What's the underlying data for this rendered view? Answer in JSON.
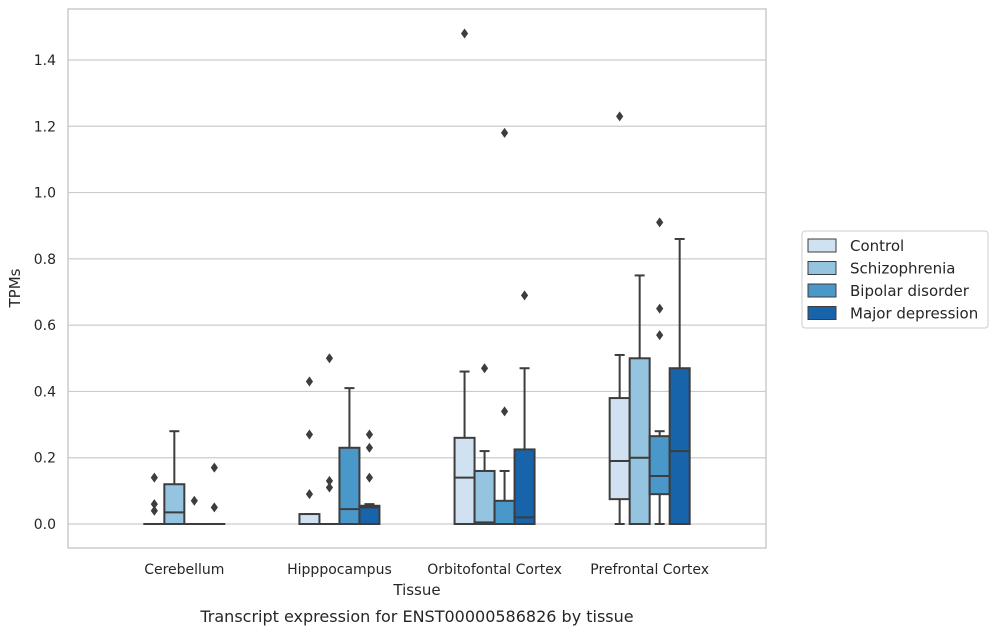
{
  "chart_data": {
    "type": "box",
    "caption": "Transcript expression for ENST00000586826 by tissue",
    "xlabel": "Tissue",
    "ylabel": "TPMs",
    "ylim": [
      -0.07,
      1.56
    ],
    "yticks": [
      0.0,
      0.2,
      0.4,
      0.6,
      0.8,
      1.0,
      1.2,
      1.4
    ],
    "ytick_labels": [
      "0.0",
      "0.2",
      "0.4",
      "0.6",
      "0.8",
      "1.0",
      "1.2",
      "1.4"
    ],
    "grid": "horizontal",
    "legend_position": "right",
    "categories": [
      "Cerebellum",
      "Hipppocampus",
      "Orbitofontal Cortex",
      "Prefrontal Cortex"
    ],
    "series": [
      {
        "name": "Control",
        "color": "#d0e1f2",
        "boxes": [
          {
            "whislo": 0,
            "q1": 0,
            "med": 0,
            "q3": 0,
            "whishi": 0,
            "fliers": [
              0.04,
              0.06,
              0.14
            ]
          },
          {
            "whislo": 0,
            "q1": 0,
            "med": 0,
            "q3": 0.03,
            "whishi": 0.03,
            "fliers": [
              0.09,
              0.27,
              0.43
            ]
          },
          {
            "whislo": 0,
            "q1": 0,
            "med": 0.14,
            "q3": 0.26,
            "whishi": 0.46,
            "fliers": [
              1.48
            ]
          },
          {
            "whislo": 0,
            "q1": 0.075,
            "med": 0.19,
            "q3": 0.38,
            "whishi": 0.51,
            "fliers": [
              1.23
            ]
          }
        ]
      },
      {
        "name": "Schizophrenia",
        "color": "#94c4df",
        "boxes": [
          {
            "whislo": 0,
            "q1": 0,
            "med": 0.035,
            "q3": 0.12,
            "whishi": 0.28,
            "fliers": []
          },
          {
            "whislo": 0,
            "q1": 0,
            "med": 0,
            "q3": 0,
            "whishi": 0,
            "fliers": [
              0.11,
              0.13,
              0.5
            ]
          },
          {
            "whislo": 0,
            "q1": 0,
            "med": 0.005,
            "q3": 0.16,
            "whishi": 0.22,
            "fliers": [
              0.47
            ]
          },
          {
            "whislo": 0,
            "q1": 0,
            "med": 0.2,
            "q3": 0.5,
            "whishi": 0.75,
            "fliers": []
          }
        ]
      },
      {
        "name": "Bipolar disorder",
        "color": "#4a98c9",
        "boxes": [
          {
            "whislo": 0,
            "q1": 0,
            "med": 0,
            "q3": 0,
            "whishi": 0,
            "fliers": [
              0.07
            ]
          },
          {
            "whislo": 0,
            "q1": 0,
            "med": 0.045,
            "q3": 0.23,
            "whishi": 0.41,
            "fliers": []
          },
          {
            "whislo": 0,
            "q1": 0,
            "med": 0,
            "q3": 0.07,
            "whishi": 0.16,
            "fliers": [
              0.34,
              1.18
            ]
          },
          {
            "whislo": 0,
            "q1": 0.09,
            "med": 0.145,
            "q3": 0.265,
            "whishi": 0.28,
            "fliers": [
              0.57,
              0.65,
              0.91
            ]
          }
        ]
      },
      {
        "name": "Major depression",
        "color": "#1764ab",
        "boxes": [
          {
            "whislo": 0,
            "q1": 0,
            "med": 0,
            "q3": 0,
            "whishi": 0,
            "fliers": [
              0.05,
              0.17
            ]
          },
          {
            "whislo": 0,
            "q1": 0,
            "med": 0.05,
            "q3": 0.055,
            "whishi": 0.06,
            "fliers": [
              0.14,
              0.23,
              0.27
            ]
          },
          {
            "whislo": 0,
            "q1": 0,
            "med": 0.02,
            "q3": 0.225,
            "whishi": 0.47,
            "fliers": [
              0.69
            ]
          },
          {
            "whislo": 0,
            "q1": 0,
            "med": 0.22,
            "q3": 0.47,
            "whishi": 0.86,
            "fliers": []
          }
        ]
      }
    ]
  }
}
